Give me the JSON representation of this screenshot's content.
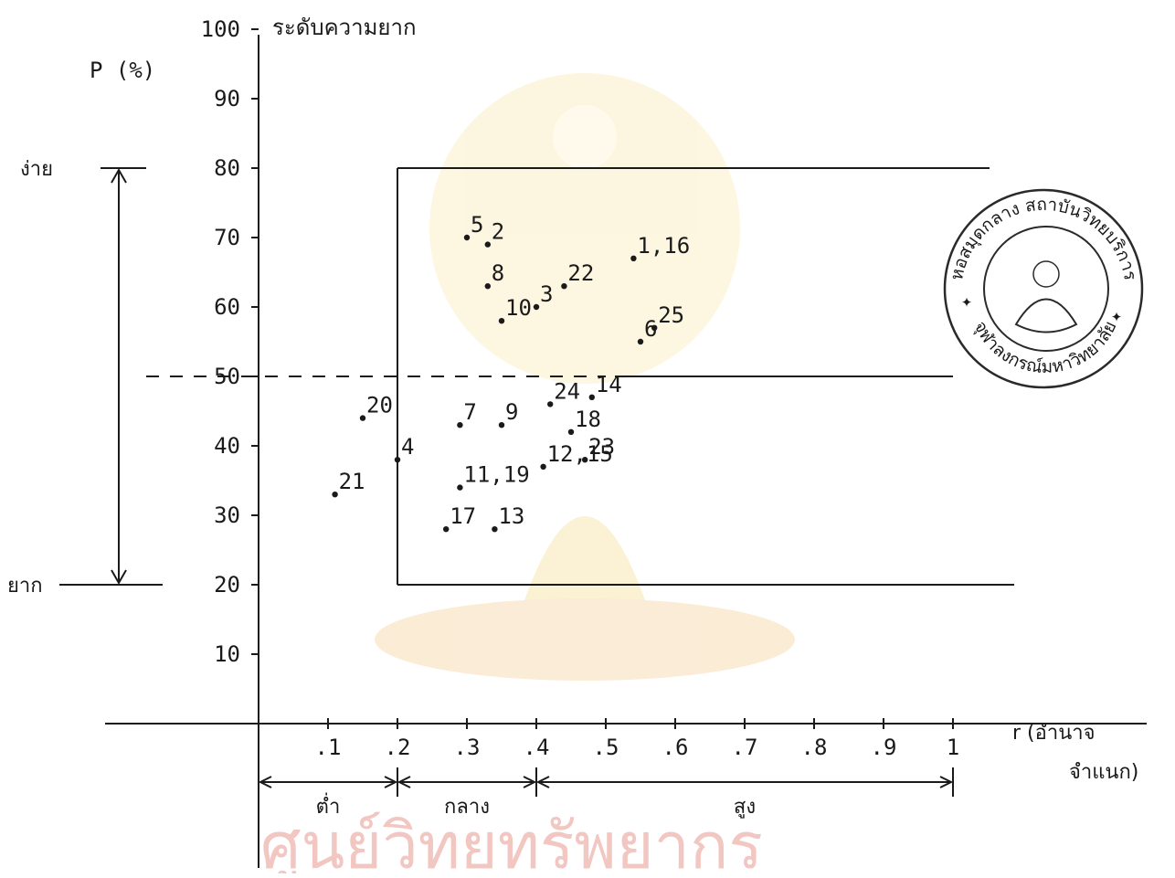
{
  "chart_data": {
    "type": "scatter",
    "title": "ระดับความยาก",
    "ylabel": "P (%)",
    "xlabel": "r (อำนาจ จำแนก)",
    "xlabel_line1": "r (อำนาจ",
    "xlabel_line2": "จำแนก)",
    "ylim": [
      0,
      100
    ],
    "xlim": [
      0,
      1
    ],
    "y_ticks": [
      10,
      20,
      30,
      40,
      50,
      60,
      70,
      80,
      90,
      100
    ],
    "y_tick_labels": [
      "10",
      "20",
      "30",
      "40",
      "50",
      "60",
      "70",
      "80",
      "90",
      "100"
    ],
    "x_ticks": [
      0.1,
      0.2,
      0.3,
      0.4,
      0.5,
      0.6,
      0.7,
      0.8,
      0.9,
      1.0
    ],
    "x_tick_labels": [
      ".1",
      ".2",
      ".3",
      ".4",
      ".5",
      ".6",
      ".7",
      ".8",
      ".9",
      "1"
    ],
    "y_range_annotation": {
      "top_label": "ง่าย",
      "top_value": 80,
      "bottom_label": "ยาก",
      "bottom_value": 20
    },
    "x_range_annotations": [
      {
        "label": "ต่ำ",
        "from": 0.0,
        "to": 0.2
      },
      {
        "label": "กลาง",
        "from": 0.2,
        "to": 0.4
      },
      {
        "label": "สูง",
        "from": 0.4,
        "to": 1.0
      }
    ],
    "reference_line_y": 50,
    "regions": [
      {
        "x_from": 0.2,
        "x_to": 1.0,
        "y_from": 20,
        "y_to": 80
      },
      {
        "x_from": 0.5,
        "x_to": 1.0,
        "y_from": 50,
        "y_to": 50
      }
    ],
    "points": [
      {
        "label": "1,16",
        "x": 0.54,
        "y": 67
      },
      {
        "label": "2",
        "x": 0.33,
        "y": 69
      },
      {
        "label": "3",
        "x": 0.4,
        "y": 60
      },
      {
        "label": "4",
        "x": 0.2,
        "y": 38
      },
      {
        "label": "5",
        "x": 0.3,
        "y": 70
      },
      {
        "label": "6",
        "x": 0.55,
        "y": 55
      },
      {
        "label": "7",
        "x": 0.29,
        "y": 43
      },
      {
        "label": "8",
        "x": 0.33,
        "y": 63
      },
      {
        "label": "9",
        "x": 0.35,
        "y": 43
      },
      {
        "label": "10",
        "x": 0.35,
        "y": 58
      },
      {
        "label": "11,19",
        "x": 0.29,
        "y": 34
      },
      {
        "label": "12,15",
        "x": 0.41,
        "y": 37
      },
      {
        "label": "13",
        "x": 0.34,
        "y": 28
      },
      {
        "label": "14",
        "x": 0.48,
        "y": 47
      },
      {
        "label": "17",
        "x": 0.27,
        "y": 28
      },
      {
        "label": "18",
        "x": 0.45,
        "y": 42
      },
      {
        "label": "20",
        "x": 0.15,
        "y": 44
      },
      {
        "label": "21",
        "x": 0.11,
        "y": 33
      },
      {
        "label": "22",
        "x": 0.44,
        "y": 63
      },
      {
        "label": "23",
        "x": 0.47,
        "y": 38
      },
      {
        "label": "24",
        "x": 0.42,
        "y": 46
      },
      {
        "label": "25",
        "x": 0.57,
        "y": 57
      }
    ]
  },
  "stamp": {
    "text_top": "หอสมุดกลาง สถาบันวิทยบริการ",
    "text_bottom": "จุฬาลงกรณ์มหาวิทยาลัย"
  },
  "watermark": {
    "text": "ศูนย์วิทยทรัพยากร",
    "color": "#f2c7c2"
  },
  "colors": {
    "ink": "#1a1a1a",
    "watermark": "#f6e3a4"
  }
}
